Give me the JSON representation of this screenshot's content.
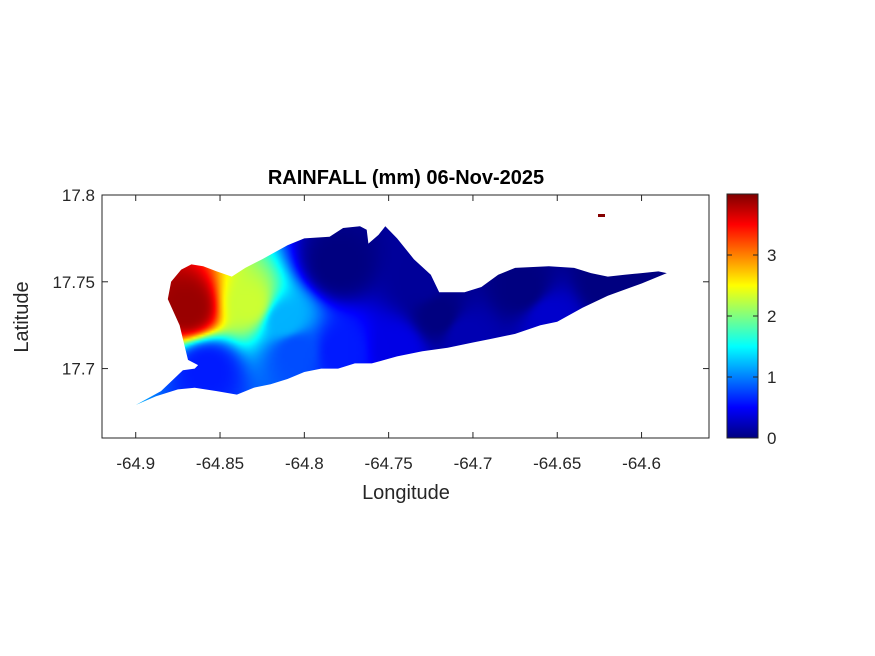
{
  "chart_data": {
    "type": "heatmap",
    "title": "RAINFALL (mm) 06-Nov-2025",
    "xlabel": "Longitude",
    "ylabel": "Latitude",
    "xlim": [
      -64.92,
      -64.56
    ],
    "ylim": [
      17.66,
      17.8
    ],
    "xticks": [
      -64.9,
      -64.85,
      -64.8,
      -64.75,
      -64.7,
      -64.65,
      -64.6
    ],
    "xtick_labels": [
      "-64.9",
      "-64.85",
      "-64.8",
      "-64.75",
      "-64.7",
      "-64.65",
      "-64.6"
    ],
    "yticks": [
      17.7,
      17.75,
      17.8
    ],
    "ytick_labels": [
      "17.7",
      "17.75",
      "17.8"
    ],
    "colorbar": {
      "lim": [
        0,
        4
      ],
      "ticks": [
        0,
        1,
        2,
        3
      ],
      "tick_labels": [
        "0",
        "1",
        "2",
        "3"
      ],
      "colormap": "jet"
    },
    "island_outline": [
      [
        -64.9,
        17.679
      ],
      [
        -64.885,
        17.687
      ],
      [
        -64.872,
        17.699
      ],
      [
        -64.865,
        17.7
      ],
      [
        -64.863,
        17.702
      ],
      [
        -64.869,
        17.705
      ],
      [
        -64.871,
        17.713
      ],
      [
        -64.874,
        17.725
      ],
      [
        -64.881,
        17.74
      ],
      [
        -64.879,
        17.75
      ],
      [
        -64.873,
        17.757
      ],
      [
        -64.867,
        17.76
      ],
      [
        -64.86,
        17.759
      ],
      [
        -64.852,
        17.756
      ],
      [
        -64.843,
        17.753
      ],
      [
        -64.835,
        17.758
      ],
      [
        -64.825,
        17.763
      ],
      [
        -64.81,
        17.771
      ],
      [
        -64.8,
        17.775
      ],
      [
        -64.785,
        17.776
      ],
      [
        -64.777,
        17.781
      ],
      [
        -64.767,
        17.782
      ],
      [
        -64.763,
        17.78
      ],
      [
        -64.762,
        17.772
      ],
      [
        -64.756,
        17.777
      ],
      [
        -64.752,
        17.782
      ],
      [
        -64.745,
        17.775
      ],
      [
        -64.735,
        17.763
      ],
      [
        -64.725,
        17.754
      ],
      [
        -64.72,
        17.744
      ],
      [
        -64.705,
        17.744
      ],
      [
        -64.695,
        17.747
      ],
      [
        -64.685,
        17.754
      ],
      [
        -64.675,
        17.758
      ],
      [
        -64.655,
        17.759
      ],
      [
        -64.64,
        17.758
      ],
      [
        -64.63,
        17.755
      ],
      [
        -64.62,
        17.753
      ],
      [
        -64.61,
        17.754
      ],
      [
        -64.6,
        17.755
      ],
      [
        -64.59,
        17.756
      ],
      [
        -64.585,
        17.755
      ],
      [
        -64.6,
        17.749
      ],
      [
        -64.62,
        17.742
      ],
      [
        -64.635,
        17.735
      ],
      [
        -64.65,
        17.727
      ],
      [
        -64.66,
        17.725
      ],
      [
        -64.675,
        17.72
      ],
      [
        -64.69,
        17.717
      ],
      [
        -64.7,
        17.715
      ],
      [
        -64.715,
        17.712
      ],
      [
        -64.73,
        17.71
      ],
      [
        -64.745,
        17.707
      ],
      [
        -64.76,
        17.703
      ],
      [
        -64.77,
        17.703
      ],
      [
        -64.78,
        17.7
      ],
      [
        -64.79,
        17.7
      ],
      [
        -64.8,
        17.698
      ],
      [
        -64.81,
        17.694
      ],
      [
        -64.82,
        17.691
      ],
      [
        -64.83,
        17.689
      ],
      [
        -64.84,
        17.685
      ],
      [
        -64.852,
        17.687
      ],
      [
        -64.865,
        17.689
      ],
      [
        -64.875,
        17.688
      ],
      [
        -64.888,
        17.684
      ],
      [
        -64.9,
        17.679
      ]
    ],
    "rain_centers": [
      {
        "lon": -64.869,
        "lat": 17.735,
        "value": 3.9
      },
      {
        "lon": -64.832,
        "lat": 17.737,
        "value": 2.3
      },
      {
        "lon": -64.812,
        "lat": 17.728,
        "value": 1.2
      },
      {
        "lon": -64.858,
        "lat": 17.7,
        "value": 0.6
      },
      {
        "lon": -64.805,
        "lat": 17.71,
        "value": 0.8
      },
      {
        "lon": -64.778,
        "lat": 17.71,
        "value": 0.6
      },
      {
        "lon": -64.745,
        "lat": 17.712,
        "value": 0.4
      },
      {
        "lon": -64.705,
        "lat": 17.72,
        "value": 0.2
      },
      {
        "lon": -64.78,
        "lat": 17.76,
        "value": 0.0
      },
      {
        "lon": -64.73,
        "lat": 17.75,
        "value": 0.1
      },
      {
        "lon": -64.72,
        "lat": 17.73,
        "value": 0.0
      },
      {
        "lon": -64.67,
        "lat": 17.745,
        "value": 0.0
      },
      {
        "lon": -64.62,
        "lat": 17.75,
        "value": 0.0
      },
      {
        "lon": -64.655,
        "lat": 17.73,
        "value": 0.3
      }
    ]
  }
}
